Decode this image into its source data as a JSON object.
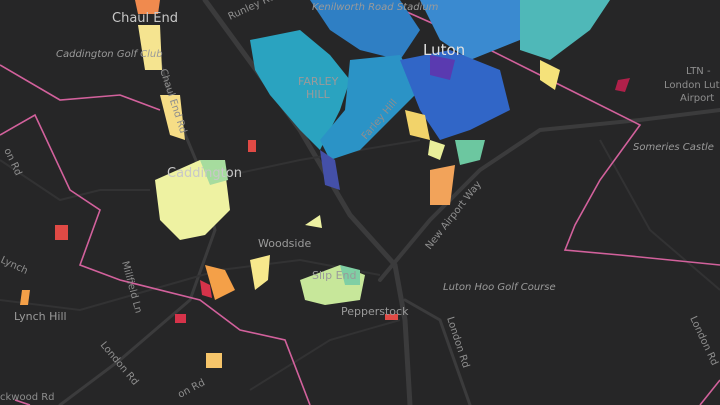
{
  "labels": [
    "Chaul End",
    "Caddington Golf Club",
    "Chaul End Rd",
    "Kenilworth Road Stadium",
    "Runley Rd",
    "Luton",
    "FARLEY",
    "HILL",
    "Farley Hill",
    "LTN -",
    "London Luton",
    "Airport",
    "Someries Castle",
    "Caddington",
    "Woodside",
    "New Airport Way",
    "Slip End",
    "Pepperstock",
    "Luton Hoo Golf Course",
    "London Rd",
    "London Rd",
    "London Rd",
    "Lynch Hill",
    "Millfield Ln",
    "Lynch",
    "on Rd",
    "on Rd",
    "ckwood Rd"
  ]
}
